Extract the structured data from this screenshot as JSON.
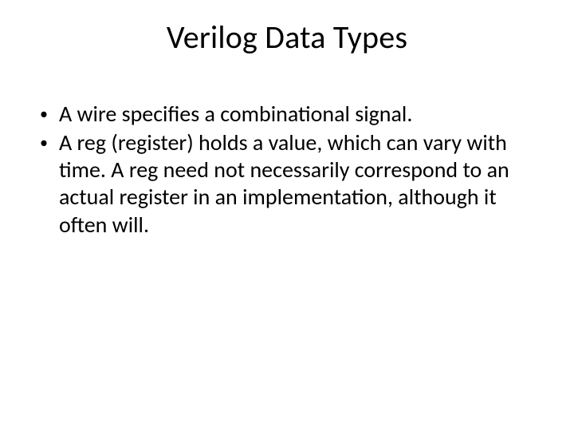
{
  "slide": {
    "title": "Verilog Data Types",
    "bullets": [
      "A wire specifies a combinational signal.",
      "A reg (register) holds a value, which can vary with time. A reg need not necessarily correspond to an actual register in an implementation, although it often will."
    ]
  },
  "style": {
    "background_color": "#ffffff",
    "text_color": "#000000",
    "title_fontsize": 40,
    "body_fontsize": 28,
    "font_family": "Calibri"
  }
}
